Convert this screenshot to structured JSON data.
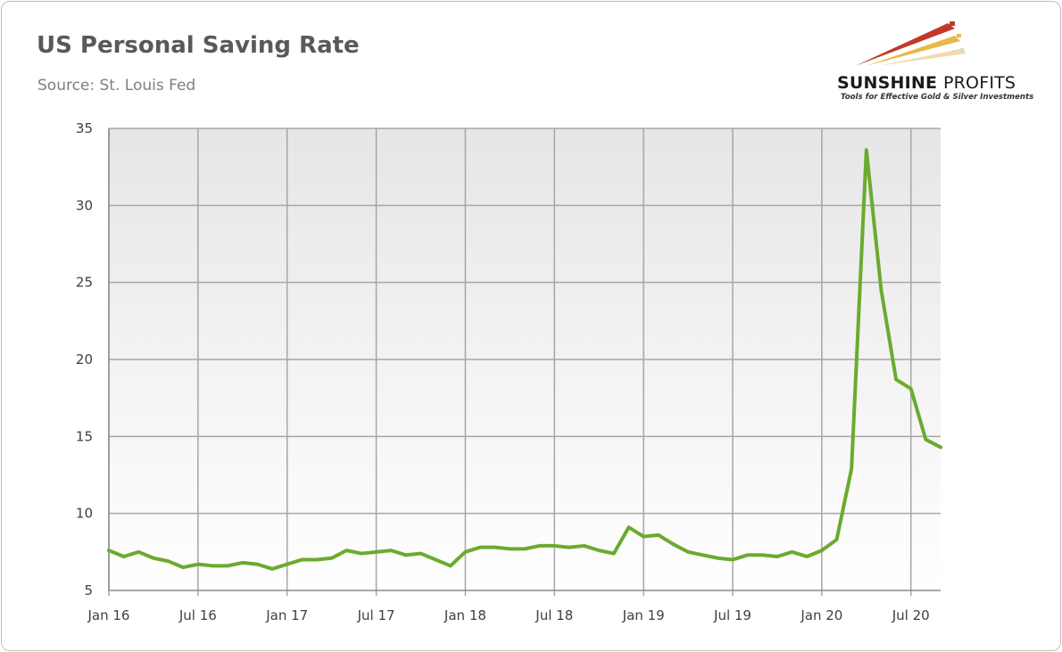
{
  "header": {
    "title": "US Personal Saving Rate",
    "subtitle": "Source: St. Louis Fed"
  },
  "logo": {
    "brand_bold": "SUNSHINE",
    "brand_light": "PROFITS",
    "tagline": "Tools for Effective Gold & Silver Investments",
    "colors": {
      "red": "#c0392b",
      "gold": "#e8b84a",
      "light": "#f2d9b0"
    }
  },
  "colors": {
    "line": "#6aab2e",
    "grid": "#a6a6a6",
    "plot_bg_top": "#e6e6e6",
    "plot_bg_bottom": "#ffffff",
    "text": "#595959"
  },
  "chart_data": {
    "type": "line",
    "title": "US Personal Saving Rate",
    "subtitle": "Source: St. Louis Fed",
    "xlabel": "",
    "ylabel": "",
    "ylim": [
      5,
      35
    ],
    "yticks": [
      "5",
      "10",
      "15",
      "20",
      "25",
      "30",
      "35"
    ],
    "xticks": [
      "Jan 16",
      "Jul 16",
      "Jan 17",
      "Jul 17",
      "Jan 18",
      "Jul 18",
      "Jan 19",
      "Jul 19",
      "Jan 20",
      "Jul 20"
    ],
    "grid": true,
    "legend": "none",
    "x_start": "Jan 16",
    "series": [
      {
        "values": [
          7.6,
          7.2,
          7.5,
          7.1,
          6.9,
          6.5,
          6.7,
          6.6,
          6.6,
          6.8,
          6.7,
          6.4,
          6.7,
          7.0,
          7.0,
          7.1,
          7.6,
          7.4,
          7.5,
          7.6,
          7.3,
          7.4,
          7.0,
          6.6,
          7.5,
          7.8,
          7.8,
          7.7,
          7.7,
          7.9,
          7.9,
          7.8,
          7.9,
          7.6,
          7.4,
          9.1,
          8.5,
          8.6,
          8.0,
          7.5,
          7.3,
          7.1,
          7.0,
          7.3,
          7.3,
          7.2,
          7.5,
          7.2,
          7.6,
          8.3,
          12.9,
          33.6,
          24.5,
          18.7,
          18.1,
          14.8,
          14.3
        ]
      }
    ]
  }
}
